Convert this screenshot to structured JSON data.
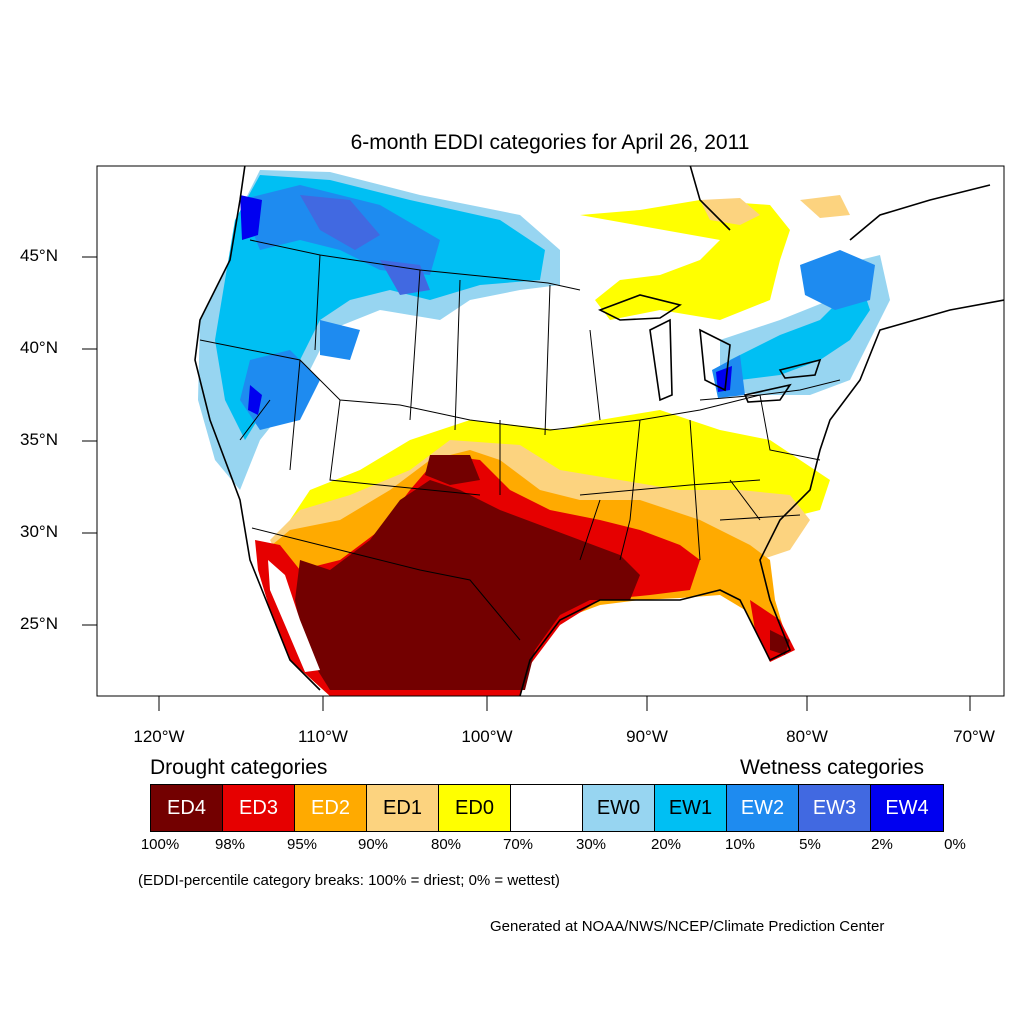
{
  "title": "6-month EDDI categories for April 26, 2011",
  "map": {
    "latitude_labels": [
      "45°N",
      "40°N",
      "35°N",
      "30°N",
      "25°N"
    ],
    "longitude_labels": [
      "120°W",
      "110°W",
      "100°W",
      "90°W",
      "80°W",
      "70°W"
    ],
    "colors": {
      "ED4": "#730000",
      "ED3": "#e60000",
      "ED2": "#ffaa00",
      "ED1": "#fcd37f",
      "ED0": "#ffff00",
      "neutral": "#ffffff",
      "EW0": "#97d5f1",
      "EW1": "#00bff3",
      "EW2": "#1e8bf0",
      "EW3": "#4169e1",
      "EW4": "#0000f0"
    }
  },
  "legend": {
    "drought_heading": "Drought categories",
    "wetness_heading": "Wetness categories",
    "categories": [
      {
        "label": "ED4",
        "color": "#730000",
        "text_color": "#ffffff"
      },
      {
        "label": "ED3",
        "color": "#e60000",
        "text_color": "#ffffff"
      },
      {
        "label": "ED2",
        "color": "#ffaa00",
        "text_color": "#ffffff"
      },
      {
        "label": "ED1",
        "color": "#fcd37f",
        "text_color": "#000000"
      },
      {
        "label": "ED0",
        "color": "#ffff00",
        "text_color": "#000000"
      },
      {
        "label": "",
        "color": "#ffffff",
        "text_color": "#000000"
      },
      {
        "label": "EW0",
        "color": "#97d5f1",
        "text_color": "#000000"
      },
      {
        "label": "EW1",
        "color": "#00bff3",
        "text_color": "#000000"
      },
      {
        "label": "EW2",
        "color": "#1e8bf0",
        "text_color": "#ffffff"
      },
      {
        "label": "EW3",
        "color": "#4169e1",
        "text_color": "#ffffff"
      },
      {
        "label": "EW4",
        "color": "#0000f0",
        "text_color": "#ffffff"
      }
    ],
    "percentile_ticks": [
      "100%",
      "98%",
      "95%",
      "90%",
      "80%",
      "70%",
      "30%",
      "20%",
      "10%",
      "5%",
      "2%",
      "0%"
    ],
    "note": "(EDDI-percentile category breaks: 100% = driest; 0% = wettest)"
  },
  "credit": "Generated at NOAA/NWS/NCEP/Climate Prediction Center"
}
